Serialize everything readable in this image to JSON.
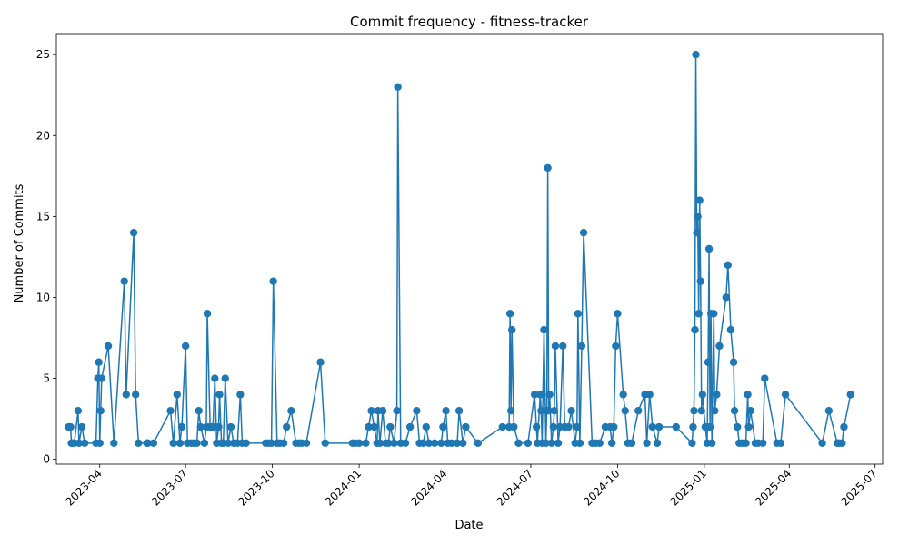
{
  "chart_data": {
    "type": "line",
    "title": "Commit frequency - fitness-tracker",
    "xlabel": "Date",
    "ylabel": "Number of Commits",
    "x_ticks": [
      {
        "date": "2023-04-01",
        "label": "2023-04"
      },
      {
        "date": "2023-07-01",
        "label": "2023-07"
      },
      {
        "date": "2023-10-01",
        "label": "2023-10"
      },
      {
        "date": "2024-01-01",
        "label": "2024-01"
      },
      {
        "date": "2024-04-01",
        "label": "2024-04"
      },
      {
        "date": "2024-07-01",
        "label": "2024-07"
      },
      {
        "date": "2024-10-01",
        "label": "2024-10"
      },
      {
        "date": "2025-01-01",
        "label": "2025-01"
      },
      {
        "date": "2025-04-01",
        "label": "2025-04"
      },
      {
        "date": "2025-07-01",
        "label": "2025-07"
      }
    ],
    "y_ticks": [
      0,
      5,
      10,
      15,
      20,
      25
    ],
    "xlim": [
      "2023-02-14",
      "2025-07-09"
    ],
    "ylim": [
      -0.3,
      26.3
    ],
    "grid": false,
    "color": "#1f77b4",
    "points": [
      [
        "2023-02-27",
        2
      ],
      [
        "2023-03-01",
        2
      ],
      [
        "2023-03-02",
        1
      ],
      [
        "2023-03-03",
        1
      ],
      [
        "2023-03-05",
        1
      ],
      [
        "2023-03-09",
        3
      ],
      [
        "2023-03-10",
        1
      ],
      [
        "2023-03-13",
        2
      ],
      [
        "2023-03-16",
        1
      ],
      [
        "2023-03-28",
        1
      ],
      [
        "2023-03-30",
        5
      ],
      [
        "2023-03-31",
        6
      ],
      [
        "2023-04-01",
        1
      ],
      [
        "2023-04-02",
        3
      ],
      [
        "2023-04-03",
        5
      ],
      [
        "2023-04-10",
        7
      ],
      [
        "2023-04-16",
        1
      ],
      [
        "2023-04-27",
        11
      ],
      [
        "2023-04-29",
        4
      ],
      [
        "2023-05-07",
        14
      ],
      [
        "2023-05-09",
        4
      ],
      [
        "2023-05-12",
        1
      ],
      [
        "2023-05-21",
        1
      ],
      [
        "2023-05-22",
        1
      ],
      [
        "2023-05-28",
        1
      ],
      [
        "2023-06-15",
        3
      ],
      [
        "2023-06-18",
        1
      ],
      [
        "2023-06-22",
        4
      ],
      [
        "2023-06-25",
        1
      ],
      [
        "2023-06-27",
        2
      ],
      [
        "2023-07-01",
        7
      ],
      [
        "2023-07-03",
        1
      ],
      [
        "2023-07-07",
        1
      ],
      [
        "2023-07-10",
        1
      ],
      [
        "2023-07-13",
        1
      ],
      [
        "2023-07-15",
        3
      ],
      [
        "2023-07-17",
        2
      ],
      [
        "2023-07-21",
        1
      ],
      [
        "2023-07-23",
        2
      ],
      [
        "2023-07-24",
        9
      ],
      [
        "2023-07-27",
        2
      ],
      [
        "2023-07-30",
        2
      ],
      [
        "2023-08-01",
        5
      ],
      [
        "2023-08-03",
        1
      ],
      [
        "2023-08-05",
        2
      ],
      [
        "2023-08-06",
        4
      ],
      [
        "2023-08-08",
        1
      ],
      [
        "2023-08-10",
        1
      ],
      [
        "2023-08-12",
        5
      ],
      [
        "2023-08-15",
        1
      ],
      [
        "2023-08-18",
        2
      ],
      [
        "2023-08-21",
        1
      ],
      [
        "2023-08-25",
        1
      ],
      [
        "2023-08-28",
        4
      ],
      [
        "2023-08-30",
        1
      ],
      [
        "2023-09-03",
        1
      ],
      [
        "2023-09-24",
        1
      ],
      [
        "2023-09-27",
        1
      ],
      [
        "2023-09-30",
        1
      ],
      [
        "2023-10-02",
        11
      ],
      [
        "2023-10-06",
        1
      ],
      [
        "2023-10-09",
        1
      ],
      [
        "2023-10-13",
        1
      ],
      [
        "2023-10-16",
        2
      ],
      [
        "2023-10-21",
        3
      ],
      [
        "2023-10-26",
        1
      ],
      [
        "2023-10-29",
        1
      ],
      [
        "2023-11-01",
        1
      ],
      [
        "2023-11-06",
        1
      ],
      [
        "2023-11-21",
        6
      ],
      [
        "2023-11-26",
        1
      ],
      [
        "2023-12-25",
        1
      ],
      [
        "2023-12-28",
        1
      ],
      [
        "2024-01-01",
        1
      ],
      [
        "2024-01-08",
        1
      ],
      [
        "2024-01-11",
        2
      ],
      [
        "2024-01-14",
        3
      ],
      [
        "2024-01-17",
        2
      ],
      [
        "2024-01-20",
        1
      ],
      [
        "2024-01-21",
        3
      ],
      [
        "2024-01-23",
        1
      ],
      [
        "2024-01-26",
        3
      ],
      [
        "2024-01-29",
        1
      ],
      [
        "2024-02-01",
        1
      ],
      [
        "2024-02-03",
        2
      ],
      [
        "2024-02-07",
        1
      ],
      [
        "2024-02-10",
        3
      ],
      [
        "2024-02-11",
        23
      ],
      [
        "2024-02-14",
        1
      ],
      [
        "2024-02-19",
        1
      ],
      [
        "2024-02-24",
        2
      ],
      [
        "2024-03-02",
        3
      ],
      [
        "2024-03-05",
        1
      ],
      [
        "2024-03-09",
        1
      ],
      [
        "2024-03-12",
        2
      ],
      [
        "2024-03-15",
        1
      ],
      [
        "2024-03-21",
        1
      ],
      [
        "2024-03-28",
        1
      ],
      [
        "2024-03-30",
        2
      ],
      [
        "2024-04-02",
        3
      ],
      [
        "2024-04-04",
        1
      ],
      [
        "2024-04-08",
        1
      ],
      [
        "2024-04-14",
        1
      ],
      [
        "2024-04-16",
        3
      ],
      [
        "2024-04-20",
        1
      ],
      [
        "2024-04-23",
        2
      ],
      [
        "2024-05-06",
        1
      ],
      [
        "2024-06-01",
        2
      ],
      [
        "2024-06-08",
        2
      ],
      [
        "2024-06-09",
        9
      ],
      [
        "2024-06-10",
        3
      ],
      [
        "2024-06-11",
        8
      ],
      [
        "2024-06-13",
        2
      ],
      [
        "2024-06-18",
        1
      ],
      [
        "2024-06-28",
        1
      ],
      [
        "2024-07-05",
        4
      ],
      [
        "2024-07-07",
        2
      ],
      [
        "2024-07-08",
        1
      ],
      [
        "2024-07-11",
        4
      ],
      [
        "2024-07-12",
        3
      ],
      [
        "2024-07-13",
        1
      ],
      [
        "2024-07-15",
        8
      ],
      [
        "2024-07-17",
        1
      ],
      [
        "2024-07-18",
        3
      ],
      [
        "2024-07-19",
        18
      ],
      [
        "2024-07-20",
        3
      ],
      [
        "2024-07-21",
        4
      ],
      [
        "2024-07-23",
        1
      ],
      [
        "2024-07-25",
        2
      ],
      [
        "2024-07-26",
        3
      ],
      [
        "2024-07-27",
        7
      ],
      [
        "2024-07-30",
        1
      ],
      [
        "2024-08-01",
        2
      ],
      [
        "2024-08-04",
        7
      ],
      [
        "2024-08-06",
        2
      ],
      [
        "2024-08-10",
        2
      ],
      [
        "2024-08-13",
        3
      ],
      [
        "2024-08-17",
        1
      ],
      [
        "2024-08-19",
        2
      ],
      [
        "2024-08-20",
        9
      ],
      [
        "2024-08-22",
        1
      ],
      [
        "2024-08-24",
        7
      ],
      [
        "2024-08-26",
        14
      ],
      [
        "2024-09-04",
        1
      ],
      [
        "2024-09-08",
        1
      ],
      [
        "2024-09-12",
        1
      ],
      [
        "2024-09-18",
        2
      ],
      [
        "2024-09-23",
        2
      ],
      [
        "2024-09-25",
        1
      ],
      [
        "2024-09-27",
        2
      ],
      [
        "2024-09-29",
        7
      ],
      [
        "2024-10-01",
        9
      ],
      [
        "2024-10-07",
        4
      ],
      [
        "2024-10-09",
        3
      ],
      [
        "2024-10-12",
        1
      ],
      [
        "2024-10-16",
        1
      ],
      [
        "2024-10-23",
        3
      ],
      [
        "2024-10-30",
        4
      ],
      [
        "2024-11-01",
        1
      ],
      [
        "2024-11-04",
        4
      ],
      [
        "2024-11-07",
        2
      ],
      [
        "2024-11-12",
        1
      ],
      [
        "2024-11-14",
        2
      ],
      [
        "2024-12-02",
        2
      ],
      [
        "2024-12-19",
        1
      ],
      [
        "2024-12-20",
        2
      ],
      [
        "2024-12-21",
        3
      ],
      [
        "2024-12-22",
        8
      ],
      [
        "2024-12-23",
        25
      ],
      [
        "2024-12-24",
        14
      ],
      [
        "2024-12-25",
        15
      ],
      [
        "2024-12-26",
        9
      ],
      [
        "2024-12-27",
        16
      ],
      [
        "2024-12-28",
        11
      ],
      [
        "2024-12-29",
        3
      ],
      [
        "2024-12-30",
        4
      ],
      [
        "2025-01-02",
        2
      ],
      [
        "2025-01-04",
        1
      ],
      [
        "2025-01-05",
        6
      ],
      [
        "2025-01-06",
        13
      ],
      [
        "2025-01-07",
        2
      ],
      [
        "2025-01-08",
        9
      ],
      [
        "2025-01-09",
        1
      ],
      [
        "2025-01-11",
        9
      ],
      [
        "2025-01-12",
        3
      ],
      [
        "2025-01-14",
        4
      ],
      [
        "2025-01-17",
        7
      ],
      [
        "2025-01-24",
        10
      ],
      [
        "2025-01-26",
        12
      ],
      [
        "2025-01-29",
        8
      ],
      [
        "2025-02-01",
        6
      ],
      [
        "2025-02-02",
        3
      ],
      [
        "2025-02-05",
        2
      ],
      [
        "2025-02-07",
        1
      ],
      [
        "2025-02-10",
        1
      ],
      [
        "2025-02-14",
        1
      ],
      [
        "2025-02-16",
        4
      ],
      [
        "2025-02-17",
        2
      ],
      [
        "2025-02-19",
        3
      ],
      [
        "2025-02-24",
        1
      ],
      [
        "2025-02-27",
        1
      ],
      [
        "2025-03-04",
        1
      ],
      [
        "2025-03-06",
        5
      ],
      [
        "2025-03-19",
        1
      ],
      [
        "2025-03-23",
        1
      ],
      [
        "2025-03-28",
        4
      ],
      [
        "2025-05-06",
        1
      ],
      [
        "2025-05-13",
        3
      ],
      [
        "2025-05-22",
        1
      ],
      [
        "2025-05-24",
        1
      ],
      [
        "2025-05-27",
        1
      ],
      [
        "2025-05-29",
        2
      ],
      [
        "2025-06-05",
        4
      ]
    ]
  }
}
